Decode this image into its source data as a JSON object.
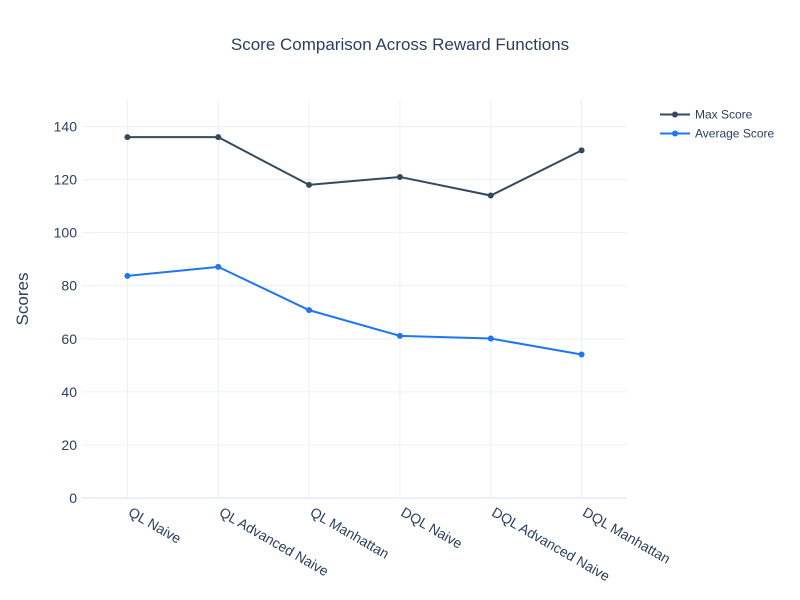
{
  "chart_data": {
    "type": "line",
    "title": "Score Comparison Across Reward Functions",
    "xlabel": "",
    "ylabel": "Scores",
    "categories": [
      "QL Naive",
      "QL Advanced Naive",
      "QL Manhattan",
      "DQL Naive",
      "DQL Advanced Naive",
      "DQL Manhattan"
    ],
    "ylim": [
      0,
      150
    ],
    "yticks": [
      0,
      20,
      40,
      60,
      80,
      100,
      120,
      140
    ],
    "grid": true,
    "legend_position": "top-right",
    "series": [
      {
        "name": "Max Score",
        "color": "#34495e",
        "values": [
          136,
          136,
          118,
          121,
          114,
          131
        ]
      },
      {
        "name": "Average Score",
        "color": "#1f77f0",
        "values": [
          83.7,
          87.1,
          70.8,
          61.1,
          60.1,
          54.1
        ]
      }
    ]
  }
}
